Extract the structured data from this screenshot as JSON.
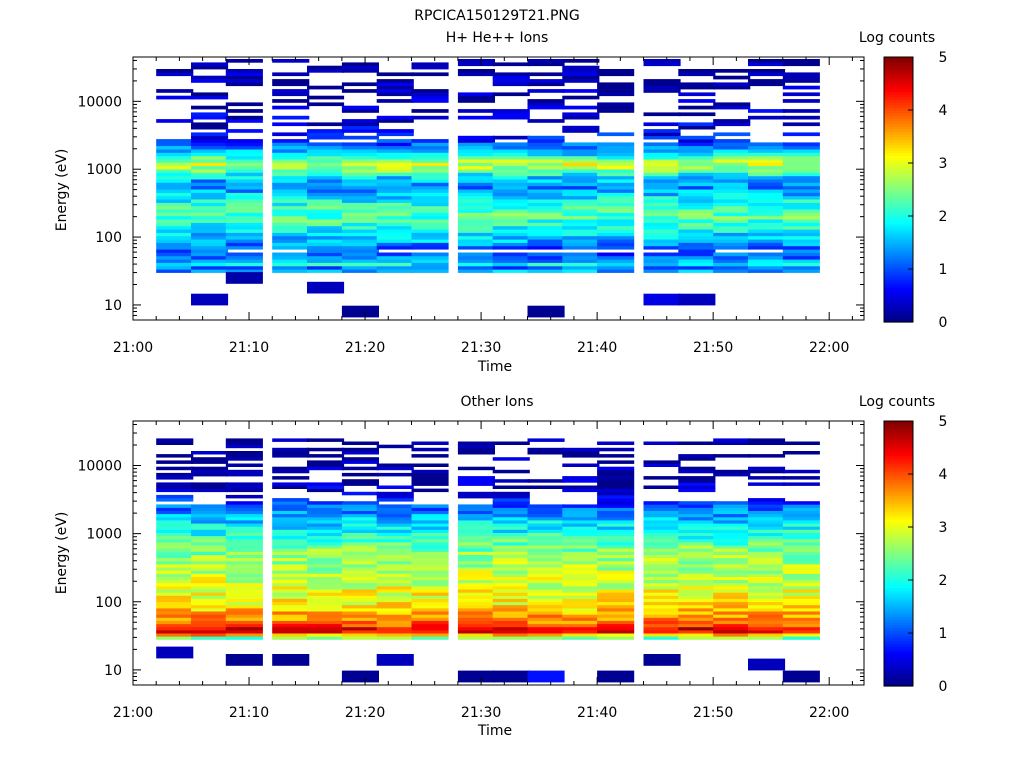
{
  "figure_title": "RPCICA150129T21.PNG",
  "colors": {
    "background": "#ffffff",
    "axis": "#000000",
    "colormap": [
      "#00007f",
      "#0000ff",
      "#0080ff",
      "#00ffff",
      "#80ff80",
      "#ffff00",
      "#ff8000",
      "#ff0000",
      "#7f0000"
    ]
  },
  "chart_data": [
    {
      "type": "heatmap",
      "title": "H+ He++ Ions",
      "xlabel": "Time",
      "ylabel": "Energy (eV)",
      "x_ticks": [
        "21:00",
        "21:10",
        "21:20",
        "21:30",
        "21:40",
        "21:50",
        "22:00"
      ],
      "xlim": [
        "21:00",
        "22:03"
      ],
      "y_scale": "log",
      "ylim": [
        6,
        45000
      ],
      "y_ticks": [
        10,
        100,
        1000,
        10000
      ],
      "y_tick_labels": [
        "10",
        "100",
        "1000",
        "10000"
      ],
      "colorbar": {
        "label": "Log counts",
        "range": [
          0,
          5
        ],
        "ticks": [
          "0",
          "1",
          "2",
          "3",
          "4",
          "5"
        ]
      },
      "time_bins": [
        "21:02",
        "21:05",
        "21:08",
        "21:12",
        "21:15",
        "21:18",
        "21:21",
        "21:24",
        "21:28",
        "21:31",
        "21:34",
        "21:37",
        "21:40",
        "21:44",
        "21:47",
        "21:50",
        "21:53",
        "21:56"
      ],
      "profile_log_counts": [
        [
          30,
          1.3
        ],
        [
          33,
          1.5
        ],
        [
          36,
          1.1
        ],
        [
          40,
          1.9
        ],
        [
          45,
          1.4
        ],
        [
          50,
          1.2
        ],
        [
          60,
          0.9
        ],
        [
          70,
          1.1
        ],
        [
          90,
          1.5
        ],
        [
          110,
          1.7
        ],
        [
          150,
          2.0
        ],
        [
          200,
          2.3
        ],
        [
          280,
          2.1
        ],
        [
          400,
          1.7
        ],
        [
          550,
          1.3
        ],
        [
          700,
          1.5
        ],
        [
          850,
          2.0
        ],
        [
          1000,
          2.6
        ],
        [
          1200,
          2.9
        ],
        [
          1450,
          2.3
        ],
        [
          1800,
          1.5
        ],
        [
          2500,
          0.9
        ],
        [
          4000,
          0.45
        ],
        [
          8000,
          0.25
        ],
        [
          20000,
          0.15
        ],
        [
          42000,
          0.1
        ]
      ],
      "low_energy_hits": [
        {
          "time": "21:05",
          "energy": 12,
          "log_counts": 0.3
        },
        {
          "time": "21:08",
          "energy": 25,
          "log_counts": 0.2
        },
        {
          "time": "21:15",
          "energy": 18,
          "log_counts": 0.3
        },
        {
          "time": "21:18",
          "energy": 8,
          "log_counts": 0.1
        },
        {
          "time": "21:34",
          "energy": 8,
          "log_counts": 0.1
        },
        {
          "time": "21:44",
          "energy": 12,
          "log_counts": 0.5
        },
        {
          "time": "21:47",
          "energy": 12,
          "log_counts": 0.3
        }
      ]
    },
    {
      "type": "heatmap",
      "title": "Other Ions",
      "xlabel": "Time",
      "ylabel": "Energy (eV)",
      "x_ticks": [
        "21:00",
        "21:10",
        "21:20",
        "21:30",
        "21:40",
        "21:50",
        "22:00"
      ],
      "xlim": [
        "21:00",
        "22:03"
      ],
      "y_scale": "log",
      "ylim": [
        6,
        45000
      ],
      "y_ticks": [
        10,
        100,
        1000,
        10000
      ],
      "y_tick_labels": [
        "10",
        "100",
        "1000",
        "10000"
      ],
      "colorbar": {
        "label": "Log counts",
        "range": [
          0,
          5
        ],
        "ticks": [
          "0",
          "1",
          "2",
          "3",
          "4",
          "5"
        ]
      },
      "time_bins": [
        "21:02",
        "21:05",
        "21:08",
        "21:12",
        "21:15",
        "21:18",
        "21:21",
        "21:24",
        "21:28",
        "21:31",
        "21:34",
        "21:37",
        "21:40",
        "21:44",
        "21:47",
        "21:50",
        "21:53",
        "21:56"
      ],
      "profile_log_counts": [
        [
          28,
          2.0
        ],
        [
          30,
          2.6
        ],
        [
          33,
          3.6
        ],
        [
          36,
          4.4
        ],
        [
          40,
          4.5
        ],
        [
          45,
          4.0
        ],
        [
          50,
          3.8
        ],
        [
          60,
          3.6
        ],
        [
          70,
          3.5
        ],
        [
          90,
          3.2
        ],
        [
          110,
          3.1
        ],
        [
          150,
          3.0
        ],
        [
          200,
          2.9
        ],
        [
          300,
          2.75
        ],
        [
          450,
          2.6
        ],
        [
          650,
          2.4
        ],
        [
          900,
          2.1
        ],
        [
          1300,
          1.8
        ],
        [
          2000,
          1.4
        ],
        [
          2800,
          0.9
        ],
        [
          4000,
          0.4
        ],
        [
          6000,
          0.2
        ],
        [
          12000,
          0.1
        ],
        [
          25000,
          0.05
        ]
      ],
      "low_energy_hits": [
        {
          "time": "21:02",
          "energy": 18,
          "log_counts": 0.3
        },
        {
          "time": "21:08",
          "energy": 14,
          "log_counts": 0.1
        },
        {
          "time": "21:12",
          "energy": 14,
          "log_counts": 0.1
        },
        {
          "time": "21:18",
          "energy": 8,
          "log_counts": 0.1
        },
        {
          "time": "21:21",
          "energy": 14,
          "log_counts": 0.3
        },
        {
          "time": "21:28",
          "energy": 8,
          "log_counts": 0.1
        },
        {
          "time": "21:31",
          "energy": 8,
          "log_counts": 0.1
        },
        {
          "time": "21:34",
          "energy": 8,
          "log_counts": 0.7
        },
        {
          "time": "21:40",
          "energy": 8,
          "log_counts": 0.1
        },
        {
          "time": "21:44",
          "energy": 14,
          "log_counts": 0.1
        },
        {
          "time": "21:53",
          "energy": 12,
          "log_counts": 0.3
        },
        {
          "time": "21:56",
          "energy": 8,
          "log_counts": 0.1
        }
      ]
    }
  ]
}
